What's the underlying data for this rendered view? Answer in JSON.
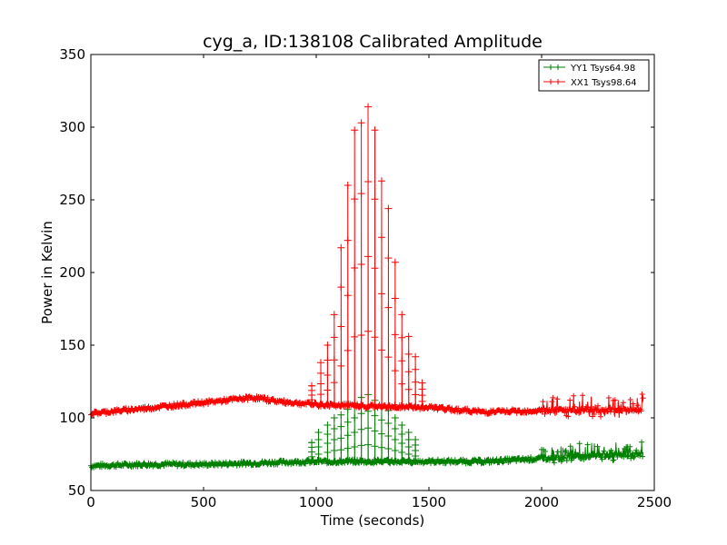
{
  "chart_data": {
    "type": "line",
    "title": "cyg_a, ID:138108 Calibrated Amplitude",
    "xlabel": "Time (seconds)",
    "ylabel": "Power in Kelvin",
    "xlim": [
      0,
      2500
    ],
    "ylim": [
      50,
      350
    ],
    "x_ticks": [
      0,
      500,
      1000,
      1500,
      2000,
      2500
    ],
    "y_ticks": [
      50,
      100,
      150,
      200,
      250,
      300,
      350
    ],
    "grid": false,
    "legend_position": "top-right",
    "marker": "+",
    "series": [
      {
        "name": "YY1 Tsys64.98",
        "color": "#008000",
        "baseline": [
          [
            0,
            67
          ],
          [
            250,
            68
          ],
          [
            500,
            68
          ],
          [
            750,
            69
          ],
          [
            1000,
            70
          ],
          [
            1250,
            70
          ],
          [
            1500,
            70
          ],
          [
            1750,
            70
          ],
          [
            2000,
            72
          ],
          [
            2250,
            74
          ],
          [
            2450,
            75
          ]
        ],
        "spikes": [
          [
            980,
            83
          ],
          [
            1010,
            90
          ],
          [
            1050,
            95
          ],
          [
            1080,
            100
          ],
          [
            1110,
            102
          ],
          [
            1140,
            106
          ],
          [
            1170,
            110
          ],
          [
            1200,
            114
          ],
          [
            1230,
            116
          ],
          [
            1260,
            112
          ],
          [
            1290,
            108
          ],
          [
            1320,
            105
          ],
          [
            1350,
            100
          ],
          [
            1380,
            95
          ],
          [
            1410,
            90
          ],
          [
            1440,
            85
          ]
        ],
        "noise_from": 2000,
        "noise_amplitude": 12
      },
      {
        "name": "XX1 Tsys98.64",
        "color": "#ff0000",
        "baseline": [
          [
            0,
            103
          ],
          [
            200,
            106
          ],
          [
            400,
            109
          ],
          [
            600,
            112
          ],
          [
            720,
            114
          ],
          [
            850,
            111
          ],
          [
            1000,
            109
          ],
          [
            1250,
            108
          ],
          [
            1500,
            107
          ],
          [
            1750,
            104
          ],
          [
            2000,
            105
          ],
          [
            2250,
            105
          ],
          [
            2450,
            106
          ]
        ],
        "spikes": [
          [
            980,
            122
          ],
          [
            1020,
            138
          ],
          [
            1050,
            150
          ],
          [
            1080,
            171
          ],
          [
            1110,
            217
          ],
          [
            1140,
            260
          ],
          [
            1170,
            298
          ],
          [
            1200,
            303
          ],
          [
            1230,
            314
          ],
          [
            1260,
            298
          ],
          [
            1290,
            263
          ],
          [
            1320,
            244
          ],
          [
            1350,
            207
          ],
          [
            1380,
            171
          ],
          [
            1410,
            156
          ],
          [
            1440,
            142
          ],
          [
            1470,
            124
          ]
        ],
        "noise_from": 2000,
        "noise_amplitude": 14
      }
    ]
  }
}
